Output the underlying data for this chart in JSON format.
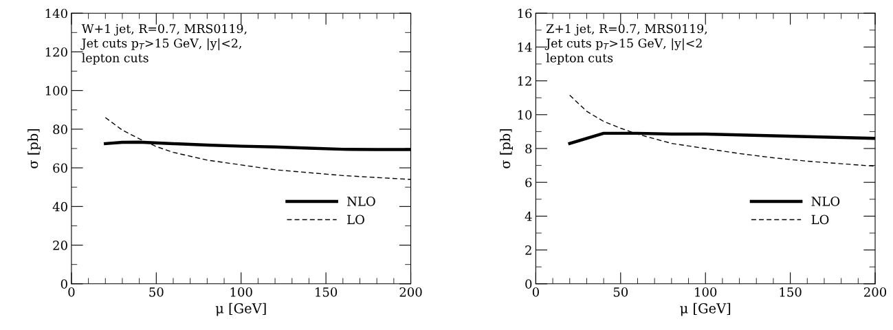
{
  "chart_data": [
    {
      "type": "line",
      "xlabel": "μ [GeV]",
      "ylabel": "σ [pb]",
      "annotations": [
        "W+1 jet, R=0.7, MRS0119,\nJet cuts p$_{T}$>15 GeV, |y|<2,\nlepton cuts"
      ],
      "xlim": [
        0,
        200
      ],
      "xticks": [
        0,
        50,
        100,
        150,
        200
      ],
      "ylim": [
        0,
        140
      ],
      "yticks": [
        0,
        20,
        40,
        60,
        80,
        100,
        120,
        140
      ],
      "grid": false,
      "legend": "bottom right",
      "series": [
        {
          "name": "NLO",
          "color": "#000000",
          "line_style": "solid",
          "x": [
            20,
            30,
            40,
            60,
            80,
            100,
            120,
            140,
            160,
            180,
            200
          ],
          "values": [
            72.5,
            73.2,
            73.3,
            72.5,
            71.8,
            71.2,
            70.8,
            70.2,
            69.6,
            69.5,
            69.5
          ]
        },
        {
          "name": "LO",
          "color": "#000000",
          "line_style": "dashed",
          "x": [
            20,
            30,
            40,
            50,
            60,
            80,
            100,
            120,
            140,
            160,
            180,
            200
          ],
          "values": [
            86,
            79.5,
            75,
            71,
            68,
            64,
            61.5,
            59,
            57.5,
            56,
            55,
            54
          ]
        }
      ]
    },
    {
      "type": "line",
      "xlabel": "μ [GeV]",
      "ylabel": "σ [pb]",
      "annotations": [
        "Z+1 jet, R=0.7, MRS0119,\nJet cuts p$_{T}$>15 GeV, |y|<2\nlepton cuts"
      ],
      "xlim": [
        0,
        200
      ],
      "xticks": [
        0,
        50,
        100,
        150,
        200
      ],
      "ylim": [
        0,
        16
      ],
      "yticks": [
        0,
        2,
        4,
        6,
        8,
        10,
        12,
        14,
        16
      ],
      "grid": false,
      "legend": "bottom right",
      "series": [
        {
          "name": "NLO",
          "color": "#000000",
          "line_style": "solid",
          "x": [
            20,
            40,
            60,
            80,
            100,
            120,
            140,
            160,
            180,
            200
          ],
          "values": [
            8.3,
            8.9,
            8.9,
            8.85,
            8.85,
            8.8,
            8.75,
            8.7,
            8.65,
            8.6
          ]
        },
        {
          "name": "LO",
          "color": "#000000",
          "line_style": "dashed",
          "x": [
            20,
            30,
            40,
            50,
            60,
            80,
            100,
            120,
            140,
            160,
            180,
            200
          ],
          "values": [
            11.15,
            10.2,
            9.6,
            9.2,
            8.85,
            8.3,
            8.0,
            7.7,
            7.45,
            7.25,
            7.1,
            6.95
          ]
        }
      ]
    }
  ]
}
